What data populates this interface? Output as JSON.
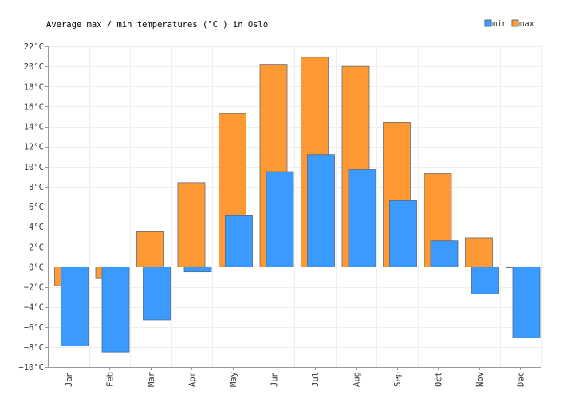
{
  "chart_data": {
    "type": "bar",
    "title": "Average max / min temperatures (°C ) in Oslo",
    "categories": [
      "Jan",
      "Feb",
      "Mar",
      "Apr",
      "May",
      "Jun",
      "Jul",
      "Aug",
      "Sep",
      "Oct",
      "Nov",
      "Dec"
    ],
    "series": [
      {
        "name": "min",
        "color": "#3a9aff",
        "values": [
          -7.9,
          -8.5,
          -5.3,
          -0.5,
          5.1,
          9.5,
          11.2,
          9.7,
          6.6,
          2.6,
          -2.7,
          -7.1
        ]
      },
      {
        "name": "max",
        "color": "#ff9933",
        "values": [
          -1.9,
          -1.1,
          3.5,
          8.4,
          15.3,
          20.2,
          20.9,
          20.0,
          14.4,
          9.3,
          2.9,
          -0.1
        ]
      }
    ],
    "yticks": [
      "22°C",
      "20°C",
      "18°C",
      "16°C",
      "14°C",
      "12°C",
      "10°C",
      "8°C",
      "6°C",
      "4°C",
      "2°C",
      "0°C",
      "−2°C",
      "−4°C",
      "−6°C",
      "−8°C",
      "−10°C"
    ],
    "ylim": [
      -10,
      22
    ],
    "ytick_step": 2,
    "xlabel": "",
    "ylabel": "",
    "grid": true,
    "legend_position": "top-right"
  }
}
